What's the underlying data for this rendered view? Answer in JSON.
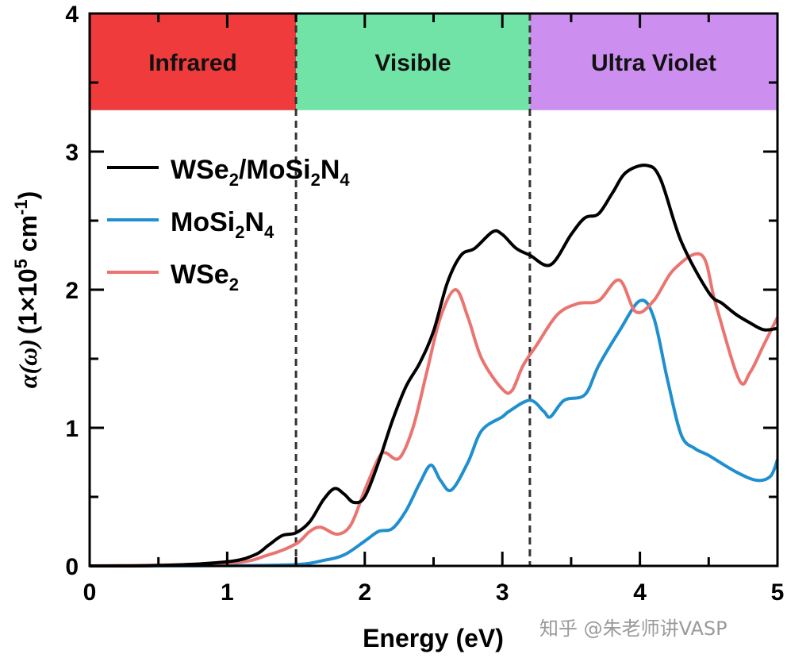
{
  "chart_data": {
    "type": "line",
    "xlabel": "Energy (eV)",
    "ylabel": "α(ω) (1×10^5 cm^-1)",
    "ylabel_parts": {
      "alpha": "α(ω)",
      "unit_a": "(1×10",
      "unit_exp": "5",
      "unit_b": " cm",
      "unit_exp2": "-1",
      "unit_c": ")"
    },
    "xlim": [
      0,
      5
    ],
    "ylim": [
      0,
      4
    ],
    "xticks": [
      "0",
      "1",
      "2",
      "3",
      "4",
      "5"
    ],
    "yticks": [
      "0",
      "1",
      "2",
      "3",
      "4"
    ],
    "grid": false,
    "legend_position": "top-left",
    "regions": [
      {
        "label": "Infrared",
        "x0": 0,
        "x1": 1.5,
        "color": "#ef3b3b"
      },
      {
        "label": "Visible",
        "x0": 1.5,
        "x1": 3.2,
        "color": "#72e3a6"
      },
      {
        "label": "Ultra Violet",
        "x0": 3.2,
        "x1": 5,
        "color": "#cc8ff0"
      }
    ],
    "region_y_range": [
      3.3,
      4
    ],
    "dashed_lines_x": [
      1.5,
      3.2
    ],
    "series": [
      {
        "name": "WSe2/MoSi2N4",
        "legend": {
          "a": "WSe",
          "s1": "2",
          "b": "/MoSi",
          "s2": "2",
          "c": "N",
          "s3": "4"
        },
        "color": "#000000",
        "x": [
          0,
          0.5,
          1.0,
          1.2,
          1.3,
          1.4,
          1.5,
          1.6,
          1.7,
          1.78,
          1.85,
          1.92,
          2.0,
          2.1,
          2.2,
          2.3,
          2.4,
          2.5,
          2.6,
          2.7,
          2.8,
          2.93,
          3.0,
          3.1,
          3.2,
          3.35,
          3.5,
          3.6,
          3.7,
          3.8,
          3.9,
          4.05,
          4.15,
          4.3,
          4.5,
          4.6,
          4.7,
          4.8,
          4.9,
          5.0
        ],
        "y": [
          0,
          0.003,
          0.03,
          0.08,
          0.15,
          0.22,
          0.24,
          0.32,
          0.48,
          0.56,
          0.52,
          0.46,
          0.5,
          0.75,
          1.05,
          1.3,
          1.47,
          1.7,
          2.05,
          2.25,
          2.3,
          2.42,
          2.4,
          2.3,
          2.25,
          2.18,
          2.4,
          2.52,
          2.55,
          2.7,
          2.85,
          2.9,
          2.8,
          2.35,
          1.98,
          1.9,
          1.82,
          1.76,
          1.71,
          1.72
        ]
      },
      {
        "name": "MoSi2N4",
        "legend": {
          "a": "MoSi",
          "s1": "2",
          "b": "N",
          "s2": "4"
        },
        "color": "#1f8fcf",
        "x": [
          0,
          1.0,
          1.5,
          1.7,
          1.85,
          2.0,
          2.1,
          2.2,
          2.3,
          2.4,
          2.48,
          2.55,
          2.63,
          2.75,
          2.85,
          3.0,
          3.05,
          3.2,
          3.3,
          3.35,
          3.45,
          3.6,
          3.7,
          3.85,
          4.0,
          4.1,
          4.2,
          4.3,
          4.4,
          4.5,
          4.7,
          4.85,
          4.95,
          5.0
        ],
        "y": [
          0,
          0.002,
          0.01,
          0.04,
          0.08,
          0.18,
          0.25,
          0.27,
          0.4,
          0.6,
          0.73,
          0.62,
          0.55,
          0.75,
          0.98,
          1.08,
          1.12,
          1.2,
          1.12,
          1.08,
          1.2,
          1.24,
          1.45,
          1.7,
          1.92,
          1.8,
          1.35,
          0.95,
          0.85,
          0.8,
          0.68,
          0.62,
          0.65,
          0.77
        ]
      },
      {
        "name": "WSe2",
        "legend": {
          "a": "WSe",
          "s1": "2"
        },
        "color": "#ea7470",
        "x": [
          0,
          1.0,
          1.3,
          1.5,
          1.6,
          1.68,
          1.8,
          1.9,
          2.0,
          2.1,
          2.15,
          2.25,
          2.35,
          2.45,
          2.55,
          2.66,
          2.75,
          2.85,
          3.0,
          3.07,
          3.15,
          3.25,
          3.4,
          3.55,
          3.7,
          3.85,
          3.97,
          4.1,
          4.25,
          4.45,
          4.55,
          4.72,
          4.8,
          4.9,
          5.0
        ],
        "y": [
          0,
          0.02,
          0.08,
          0.16,
          0.25,
          0.28,
          0.23,
          0.3,
          0.55,
          0.78,
          0.82,
          0.78,
          1.0,
          1.4,
          1.8,
          2.0,
          1.8,
          1.5,
          1.28,
          1.27,
          1.45,
          1.6,
          1.82,
          1.9,
          1.92,
          2.07,
          1.84,
          1.92,
          2.15,
          2.25,
          1.9,
          1.35,
          1.4,
          1.6,
          1.8
        ]
      }
    ]
  },
  "watermark": "知乎 @朱老师讲VASP"
}
